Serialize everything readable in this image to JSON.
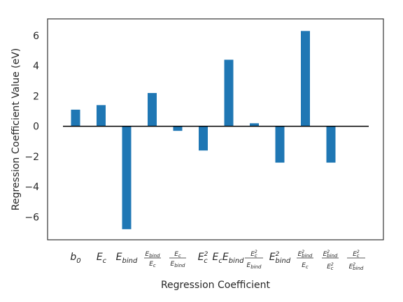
{
  "chart_data": {
    "type": "bar",
    "title": "",
    "xlabel": "Regression Coefficient",
    "ylabel": "Regression Coefficient Value (eV)",
    "ylim": [
      -7.5,
      7.1
    ],
    "yticks": [
      6,
      4,
      2,
      0,
      -2,
      -4,
      -6
    ],
    "ytick_labels": [
      "6",
      "4",
      "2",
      "0",
      "−2",
      "−4",
      "−6"
    ],
    "grid": false,
    "bar_color": "#1f77b4",
    "zero_line": true,
    "categories": [
      "b_0",
      "E_c",
      "E_bind",
      "E_bind/E_c",
      "E_c/E_bind",
      "E_c^2",
      "E_c E_bind",
      "E_c^2/E_bind",
      "E_bind^2",
      "E_bind^2/E_c",
      "E_bind^2/E_c^2",
      "E_c^2/E_bind^2"
    ],
    "values": [
      1.1,
      1.4,
      -6.8,
      2.2,
      -0.3,
      -1.6,
      4.4,
      0.2,
      -2.4,
      6.3,
      -2.4,
      0.0
    ]
  }
}
